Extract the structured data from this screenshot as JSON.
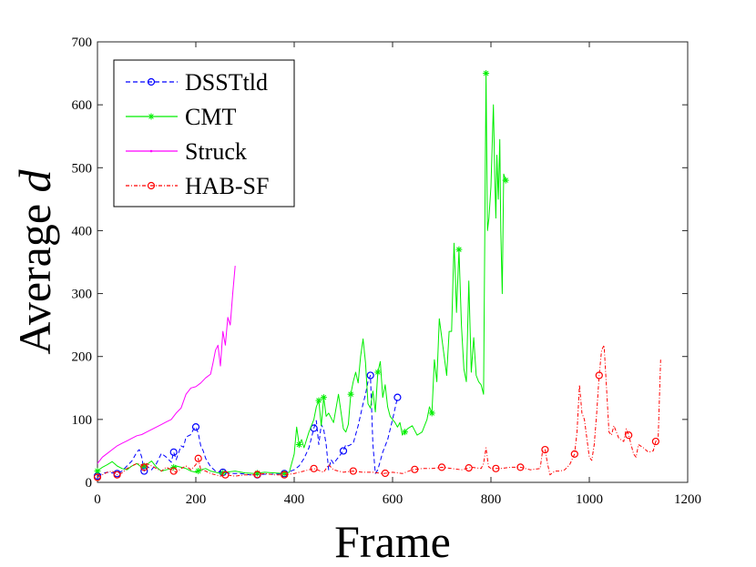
{
  "chart_data": {
    "type": "line",
    "xlabel": "Frame",
    "ylabel": {
      "prefix": "Average ",
      "var": "d"
    },
    "xlim": [
      0,
      1200
    ],
    "ylim": [
      0,
      700
    ],
    "xticks": [
      0,
      200,
      400,
      600,
      800,
      1000,
      1200
    ],
    "yticks": [
      0,
      100,
      200,
      300,
      400,
      500,
      600,
      700
    ],
    "grid": false,
    "legend_position": "top-left",
    "series": [
      {
        "name": "DSSTtld",
        "color": "#0000ff",
        "dash": "5,3",
        "marker": "circle",
        "marker_x": [
          0,
          40,
          95,
          155,
          200,
          255,
          325,
          380,
          440,
          500,
          555,
          610
        ],
        "x": [
          0,
          10,
          20,
          30,
          40,
          50,
          60,
          70,
          80,
          85,
          90,
          95,
          100,
          110,
          120,
          130,
          140,
          150,
          155,
          160,
          170,
          175,
          180,
          190,
          195,
          200,
          205,
          210,
          215,
          220,
          230,
          240,
          255,
          270,
          290,
          310,
          325,
          340,
          360,
          380,
          400,
          410,
          420,
          430,
          440,
          445,
          450,
          455,
          460,
          465,
          470,
          475,
          480,
          490,
          500,
          505,
          510,
          520,
          530,
          540,
          545,
          550,
          555,
          560,
          565,
          570,
          580,
          590,
          600,
          610
        ],
        "y": [
          10,
          14,
          16,
          15,
          14,
          18,
          26,
          34,
          48,
          52,
          40,
          18,
          26,
          20,
          30,
          46,
          40,
          32,
          48,
          36,
          58,
          56,
          72,
          76,
          84,
          88,
          78,
          58,
          50,
          38,
          25,
          18,
          16,
          14,
          14,
          12,
          12,
          13,
          13,
          14,
          20,
          26,
          38,
          55,
          86,
          98,
          60,
          92,
          84,
          60,
          20,
          36,
          30,
          40,
          50,
          60,
          58,
          62,
          90,
          125,
          140,
          160,
          170,
          60,
          14,
          20,
          48,
          68,
          100,
          135
        ]
      },
      {
        "name": "CMT",
        "color": "#00ee00",
        "dash": "",
        "marker": "star",
        "marker_x": [
          0,
          95,
          155,
          205,
          255,
          325,
          380,
          410,
          450,
          460,
          515,
          570,
          625,
          680,
          735,
          790,
          830
        ],
        "x": [
          0,
          10,
          20,
          30,
          40,
          50,
          60,
          70,
          80,
          90,
          100,
          110,
          120,
          130,
          140,
          150,
          160,
          170,
          180,
          190,
          200,
          210,
          220,
          230,
          240,
          250,
          260,
          280,
          300,
          320,
          340,
          360,
          380,
          390,
          400,
          405,
          410,
          415,
          420,
          430,
          440,
          445,
          450,
          455,
          460,
          465,
          470,
          480,
          490,
          500,
          505,
          510,
          515,
          520,
          525,
          530,
          535,
          540,
          545,
          550,
          555,
          560,
          565,
          570,
          575,
          580,
          585,
          590,
          595,
          600,
          605,
          610,
          615,
          620,
          625,
          630,
          640,
          650,
          660,
          670,
          675,
          680,
          685,
          690,
          695,
          700,
          705,
          710,
          715,
          720,
          722,
          725,
          728,
          730,
          735,
          740,
          745,
          750,
          755,
          760,
          765,
          770,
          775,
          780,
          785,
          790,
          793,
          796,
          800,
          805,
          808,
          810,
          812,
          815,
          818,
          820,
          823,
          826,
          830
        ],
        "y": [
          18,
          24,
          28,
          33,
          26,
          22,
          20,
          26,
          30,
          24,
          28,
          34,
          24,
          18,
          20,
          22,
          26,
          24,
          22,
          18,
          16,
          20,
          22,
          18,
          16,
          14,
          16,
          18,
          15,
          14,
          16,
          15,
          14,
          16,
          45,
          88,
          60,
          68,
          55,
          80,
          100,
          120,
          130,
          90,
          135,
          105,
          110,
          95,
          140,
          85,
          80,
          92,
          140,
          160,
          175,
          158,
          200,
          228,
          190,
          125,
          118,
          145,
          112,
          175,
          192,
          135,
          155,
          120,
          105,
          100,
          95,
          88,
          95,
          75,
          80,
          85,
          90,
          75,
          80,
          100,
          120,
          110,
          195,
          160,
          260,
          230,
          200,
          170,
          240,
          240,
          300,
          380,
          320,
          270,
          370,
          250,
          180,
          160,
          320,
          175,
          230,
          170,
          160,
          155,
          140,
          650,
          400,
          420,
          470,
          600,
          480,
          420,
          520,
          450,
          545,
          400,
          300,
          490,
          480
        ]
      },
      {
        "name": "Struck",
        "color": "#ff00ff",
        "dash": "",
        "marker": "point",
        "marker_x": [],
        "x": [
          0,
          10,
          20,
          30,
          40,
          50,
          60,
          70,
          80,
          90,
          100,
          110,
          120,
          130,
          140,
          150,
          160,
          170,
          180,
          190,
          200,
          210,
          220,
          230,
          235,
          240,
          245,
          250,
          255,
          260,
          265,
          270,
          275,
          280
        ],
        "y": [
          30,
          40,
          46,
          52,
          58,
          62,
          66,
          70,
          74,
          76,
          80,
          84,
          88,
          92,
          96,
          100,
          110,
          118,
          140,
          150,
          152,
          158,
          166,
          172,
          190,
          210,
          218,
          185,
          240,
          218,
          262,
          250,
          300,
          344
        ]
      },
      {
        "name": "HAB-SF",
        "color": "#ff0000",
        "dash": "4,2,1,2",
        "marker": "circle",
        "marker_x": [
          0,
          40,
          95,
          155,
          205,
          260,
          325,
          380,
          440,
          520,
          585,
          645,
          700,
          755,
          810,
          860,
          910,
          970,
          1020,
          1080,
          1135
        ],
        "x": [
          0,
          10,
          20,
          30,
          40,
          50,
          60,
          70,
          80,
          90,
          95,
          100,
          110,
          120,
          130,
          140,
          150,
          160,
          170,
          180,
          190,
          200,
          205,
          210,
          220,
          230,
          240,
          250,
          260,
          280,
          300,
          320,
          340,
          360,
          380,
          400,
          420,
          440,
          460,
          470,
          480,
          490,
          500,
          520,
          540,
          560,
          580,
          600,
          620,
          640,
          660,
          680,
          700,
          720,
          740,
          760,
          780,
          785,
          790,
          795,
          800,
          820,
          840,
          860,
          880,
          900,
          905,
          910,
          915,
          920,
          930,
          940,
          950,
          960,
          970,
          975,
          980,
          985,
          990,
          995,
          1000,
          1005,
          1010,
          1015,
          1020,
          1025,
          1030,
          1035,
          1040,
          1045,
          1050,
          1060,
          1070,
          1075,
          1080,
          1085,
          1090,
          1095,
          1100,
          1110,
          1120,
          1130,
          1135,
          1140,
          1145
        ],
        "y": [
          8,
          12,
          16,
          18,
          12,
          15,
          22,
          26,
          30,
          28,
          24,
          30,
          26,
          22,
          18,
          24,
          20,
          16,
          22,
          26,
          20,
          28,
          38,
          20,
          18,
          14,
          12,
          10,
          12,
          10,
          12,
          12,
          14,
          12,
          12,
          14,
          18,
          22,
          16,
          28,
          20,
          18,
          16,
          18,
          16,
          16,
          14,
          16,
          14,
          20,
          22,
          22,
          24,
          22,
          20,
          24,
          22,
          30,
          55,
          25,
          22,
          22,
          24,
          24,
          20,
          22,
          50,
          52,
          30,
          12,
          18,
          18,
          20,
          28,
          45,
          80,
          155,
          110,
          100,
          70,
          40,
          35,
          60,
          110,
          170,
          210,
          218,
          150,
          80,
          75,
          90,
          70,
          65,
          85,
          75,
          60,
          45,
          40,
          60,
          55,
          48,
          50,
          65,
          70,
          195
        ]
      }
    ]
  }
}
